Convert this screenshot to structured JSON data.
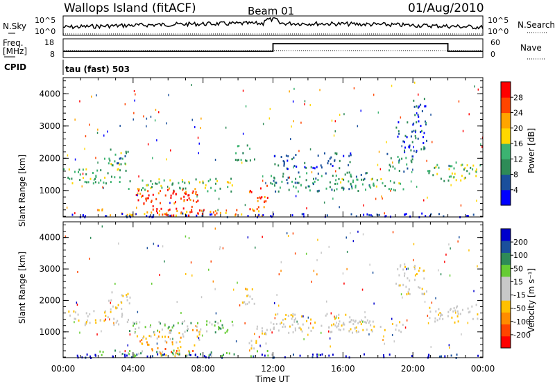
{
  "header": {
    "station": "Wallops Island (fitACF)",
    "beam": "Beam 01",
    "date": "01/Aug/2010"
  },
  "panels": {
    "nsky": {
      "label": "N.Sky",
      "ticks": [
        "10^5",
        "10^0"
      ],
      "right_label": "N.Search",
      "right_ticks": [
        "10^5",
        "10^0"
      ]
    },
    "freq": {
      "label_line1": "Freq.",
      "label_line2": "[MHz]",
      "ticks": [
        "18",
        "8"
      ],
      "right_label": "Nave",
      "right_ticks": [
        "60",
        "0"
      ]
    },
    "cpid": {
      "label": "CPID",
      "value": "tau (fast) 503"
    }
  },
  "colors": {
    "power": [
      "#0000ff",
      "#1a4f9c",
      "#2e8b57",
      "#3cb371",
      "#ffd700",
      "#ffa500",
      "#ff4500",
      "#ff0000"
    ],
    "velocity": [
      "#ff0000",
      "#ff4500",
      "#ff8c00",
      "#ffc000",
      "#c8c8c8",
      "#c8c8c8",
      "#66cc33",
      "#2e8b57",
      "#1a4f9c",
      "#0000cc"
    ],
    "ground_scatter": "#bbbbbb"
  },
  "colorbars": {
    "power": {
      "title": "Power [dB]",
      "ticks": [
        "28",
        "24",
        "20",
        "16",
        "12",
        "8",
        "4"
      ]
    },
    "velocity": {
      "title": "Velocity [m s⁻¹]",
      "ticks": [
        "200",
        "100",
        "50",
        "15",
        "-15",
        "-50",
        "-100",
        "-200"
      ]
    }
  },
  "chart_data": [
    {
      "type": "heatmap",
      "title": "Power",
      "ylabel": "Slant Range [km]",
      "xlabel": "Time UT",
      "x_ticks": [
        "00:00",
        "04:00",
        "08:00",
        "12:00",
        "16:00",
        "20:00",
        "00:00"
      ],
      "xlim": [
        0,
        24
      ],
      "y_ticks": [
        1000,
        2000,
        3000,
        4000
      ],
      "ylim": [
        180,
        4500
      ],
      "colorbar": "power",
      "regions": [
        {
          "t0": 0.0,
          "t1": 3.7,
          "r0": 1250,
          "r1": 1700,
          "level": 3
        },
        {
          "t0": 2.3,
          "t1": 3.6,
          "r0": 1650,
          "r1": 2300,
          "level": 3
        },
        {
          "t0": 3.0,
          "t1": 3.8,
          "r0": 1800,
          "r1": 2250,
          "level": 2
        },
        {
          "t0": 3.7,
          "t1": 9.7,
          "r0": 1000,
          "r1": 1400,
          "level": 3
        },
        {
          "t0": 4.2,
          "t1": 7.8,
          "r0": 600,
          "r1": 1100,
          "level": 6
        },
        {
          "t0": 4.5,
          "t1": 7.0,
          "r0": 750,
          "r1": 1000,
          "level": 7
        },
        {
          "t0": 5.0,
          "t1": 8.0,
          "r0": 250,
          "r1": 550,
          "level": 7
        },
        {
          "t0": 2.0,
          "t1": 12.0,
          "r0": 250,
          "r1": 450,
          "level": 5
        },
        {
          "t0": 9.8,
          "t1": 11.0,
          "r0": 1900,
          "r1": 2450,
          "level": 2
        },
        {
          "t0": 10.6,
          "t1": 11.7,
          "r0": 400,
          "r1": 1200,
          "level": 6
        },
        {
          "t0": 11.8,
          "t1": 17.8,
          "r0": 1000,
          "r1": 1600,
          "level": 2
        },
        {
          "t0": 12.0,
          "t1": 16.5,
          "r0": 1700,
          "r1": 2200,
          "level": 1
        },
        {
          "t0": 15.5,
          "t1": 19.5,
          "r0": 1000,
          "r1": 1400,
          "level": 3
        },
        {
          "t0": 18.5,
          "t1": 20.0,
          "r0": 1600,
          "r1": 2200,
          "level": 2
        },
        {
          "t0": 19.0,
          "t1": 20.8,
          "r0": 2200,
          "r1": 3200,
          "level": 1
        },
        {
          "t0": 20.0,
          "t1": 20.9,
          "r0": 3300,
          "r1": 3900,
          "level": 1
        },
        {
          "t0": 20.8,
          "t1": 23.9,
          "r0": 1300,
          "r1": 1900,
          "level": 3
        },
        {
          "t0": 0.0,
          "t1": 23.9,
          "r0": 200,
          "r1": 320,
          "level": 0
        }
      ]
    },
    {
      "type": "heatmap",
      "title": "Velocity",
      "ylabel": "Slant Range [km]",
      "xlabel": "Time UT",
      "x_ticks": [
        "00:00",
        "04:00",
        "08:00",
        "12:00",
        "16:00",
        "20:00",
        "00:00"
      ],
      "xlim": [
        0,
        24
      ],
      "y_ticks": [
        1000,
        2000,
        3000,
        4000
      ],
      "ylim": [
        180,
        4500
      ],
      "colorbar": "velocity",
      "regions": [
        {
          "t0": 0.0,
          "t1": 3.7,
          "r0": 1250,
          "r1": 1700,
          "level": 4
        },
        {
          "t0": 2.3,
          "t1": 3.8,
          "r0": 1650,
          "r1": 2300,
          "level": 4
        },
        {
          "t0": 3.7,
          "t1": 9.7,
          "r0": 1000,
          "r1": 1400,
          "level": 6
        },
        {
          "t0": 4.2,
          "t1": 7.8,
          "r0": 600,
          "r1": 1100,
          "level": 3
        },
        {
          "t0": 5.0,
          "t1": 8.0,
          "r0": 250,
          "r1": 550,
          "level": 2
        },
        {
          "t0": 2.0,
          "t1": 12.0,
          "r0": 250,
          "r1": 450,
          "level": 6
        },
        {
          "t0": 9.8,
          "t1": 11.0,
          "r0": 1900,
          "r1": 2450,
          "level": 4
        },
        {
          "t0": 10.6,
          "t1": 11.7,
          "r0": 400,
          "r1": 1200,
          "level": 4
        },
        {
          "t0": 11.8,
          "t1": 17.8,
          "r0": 1000,
          "r1": 1600,
          "level": 4
        },
        {
          "t0": 15.5,
          "t1": 19.5,
          "r0": 1000,
          "r1": 1400,
          "level": 4
        },
        {
          "t0": 19.0,
          "t1": 20.8,
          "r0": 2200,
          "r1": 3200,
          "level": 4
        },
        {
          "t0": 20.8,
          "t1": 23.9,
          "r0": 1300,
          "r1": 1900,
          "level": 4
        },
        {
          "t0": 0.0,
          "t1": 23.9,
          "r0": 200,
          "r1": 320,
          "level": 9
        }
      ]
    }
  ]
}
